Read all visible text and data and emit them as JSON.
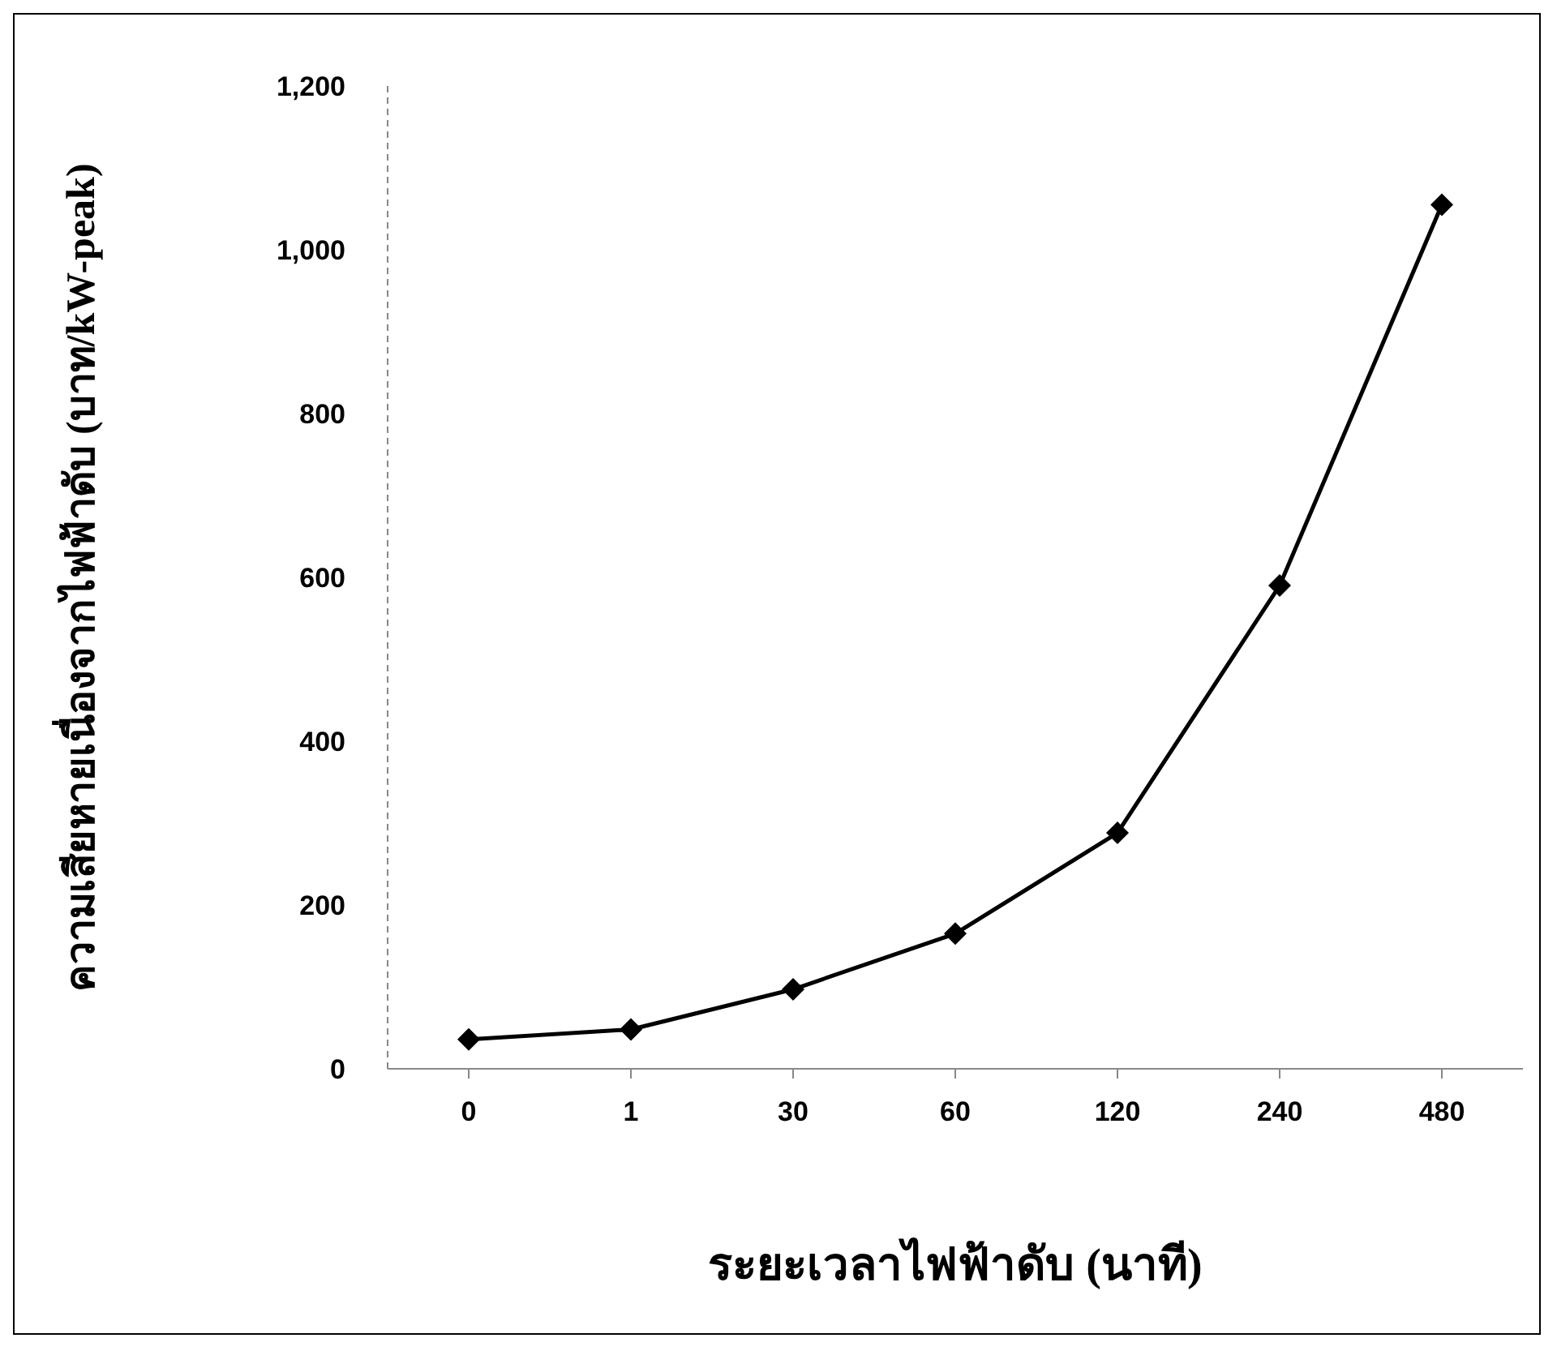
{
  "chart_data": {
    "type": "line",
    "xlabel": "ระยะเวลาไฟฟ้าดับ (นาที)",
    "ylabel": "ความเสียหายเนื่องจากไฟฟ้าดับ (บาท/kW-peak)",
    "categories": [
      "0",
      "1",
      "30",
      "60",
      "120",
      "240",
      "480"
    ],
    "series": [
      {
        "color": "#000000",
        "values": [
          36,
          48,
          97,
          165,
          288,
          590,
          1055
        ]
      }
    ],
    "ylim": [
      0,
      1200
    ],
    "yticks": [
      0,
      {
        "value": 200,
        "label": "200"
      },
      {
        "value": 400,
        "label": "400"
      },
      {
        "value": 600,
        "label": "600"
      },
      {
        "value": 800,
        "label": "800"
      },
      {
        "value": 1000,
        "label": "1,000"
      },
      {
        "value": 1200,
        "label": "1,200"
      }
    ],
    "grid": false,
    "legend": false,
    "marker": "diamond",
    "line_style": "solid"
  }
}
